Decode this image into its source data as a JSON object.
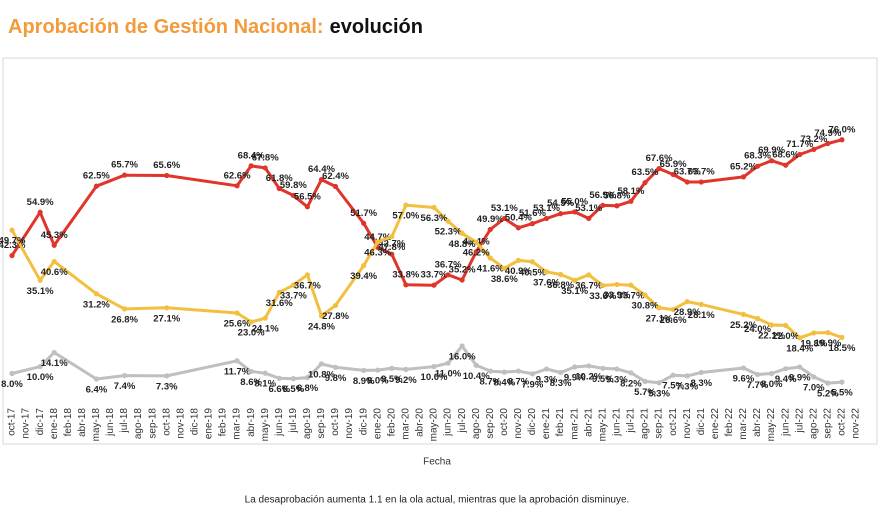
{
  "chart_data": {
    "type": "line",
    "title": "Aprobación de Gestión Nacional:",
    "title_emphasis": "evolución",
    "x_label": "Fecha",
    "note": "La desaprobación aumenta 1.1 en la ola actual, mientras que la aprobación disminuye.",
    "categories": [
      "oct-17",
      "nov-17",
      "dic-17",
      "ene-18",
      "feb-18",
      "abr-18",
      "may-18",
      "jun-18",
      "jul-18",
      "ago-18",
      "sep-18",
      "oct-18",
      "nov-18",
      "dic-18",
      "ene-19",
      "feb-19",
      "mar-19",
      "abr-19",
      "may-19",
      "jun-19",
      "jul-19",
      "ago-19",
      "sep-19",
      "oct-19",
      "nov-19",
      "dic-19",
      "ene-20",
      "feb-20",
      "mar-20",
      "abr-20",
      "may-20",
      "jun-20",
      "jul-20",
      "ago-20",
      "sep-20",
      "oct-20",
      "nov-20",
      "dic-20",
      "ene-21",
      "feb-21",
      "mar-21",
      "abr-21",
      "may-21",
      "jun-21",
      "jul-21",
      "ago-21",
      "sep-21",
      "oct-21",
      "nov-21",
      "dic-21",
      "ene-22",
      "feb-22",
      "mar-22",
      "abr-22",
      "may-22",
      "jun-22",
      "jul-22",
      "ago-22",
      "sep-22",
      "oct-22",
      "nov-22"
    ],
    "x": [
      "oct-17",
      "dic-17",
      "ene-18",
      "may-18",
      "jul-18",
      "oct-18",
      "mar-19",
      "abr-19",
      "may-19",
      "jun-19",
      "jul-19",
      "ago-19",
      "sep-19",
      "oct-19",
      "dic-19",
      "ene-20",
      "feb-20",
      "mar-20",
      "may-20",
      "jun-20",
      "jul-20",
      "ago-20",
      "sep-20",
      "oct-20",
      "nov-20",
      "dic-20",
      "ene-21",
      "feb-21",
      "mar-21",
      "abr-21",
      "may-21",
      "jun-21",
      "jul-21",
      "ago-21",
      "sep-21",
      "oct-21",
      "nov-21",
      "dic-21",
      "mar-22",
      "abr-22",
      "may-22",
      "jun-22",
      "jul-22",
      "ago-22",
      "sep-22",
      "oct-22"
    ],
    "ylim": [
      0,
      80
    ],
    "series": [
      {
        "color": "#e0352b",
        "label_side": "above",
        "values": [
          42.3,
          54.9,
          45.3,
          62.5,
          65.7,
          65.6,
          62.6,
          68.4,
          67.8,
          61.8,
          59.8,
          56.5,
          64.4,
          62.4,
          51.7,
          44.7,
          42.7,
          33.8,
          33.7,
          36.7,
          35.2,
          43.4,
          49.9,
          53.1,
          50.4,
          51.6,
          53.1,
          54.5,
          55.0,
          53.1,
          56.9,
          56.8,
          58.1,
          63.5,
          67.6,
          65.9,
          63.7,
          63.7,
          65.2,
          68.3,
          69.9,
          68.6,
          71.7,
          73.2,
          74.9,
          76.0
        ],
        "value_labels": [
          "42.3%",
          "54.9%",
          "45.3%",
          "62.5%",
          "65.7%",
          "65.6%",
          "62.6%",
          "68.4%",
          "67.8%",
          "61.8%",
          "59.8%",
          "56.5%",
          "64.4%",
          "62.4%",
          "51.7%",
          "44.7%",
          "42.7%",
          "33.8%",
          "33.7%",
          "36.7%",
          "35.2%",
          "43.4%",
          "49.9%",
          "53.1%",
          "50.4%",
          "51.6%",
          "53.1%",
          "54.5%",
          "55.0%",
          "53.1%",
          "56.9%",
          "56.8%",
          "58.1%",
          "63.5%",
          "67.6%",
          "65.9%",
          "63.7%",
          "63.7%",
          "65.2%",
          "68.3%",
          "69.9%",
          "68.6%",
          "71.7%",
          "73.2%",
          "74.9%",
          "76.0%"
        ]
      },
      {
        "color": "#f2bf3f",
        "label_side": "below",
        "values": [
          49.7,
          35.1,
          40.6,
          31.2,
          26.8,
          27.1,
          25.6,
          23.0,
          24.1,
          31.6,
          33.7,
          36.7,
          24.8,
          27.8,
          39.4,
          46.3,
          47.8,
          57.0,
          56.3,
          52.3,
          48.8,
          46.2,
          41.6,
          38.6,
          40.9,
          40.5,
          37.6,
          36.8,
          35.1,
          36.7,
          33.6,
          33.9,
          33.7,
          30.8,
          27.1,
          26.6,
          28.9,
          28.1,
          25.2,
          24.0,
          22.1,
          22.0,
          18.4,
          19.8,
          19.9,
          18.5
        ],
        "value_labels": [
          "49.7%",
          "35.1%",
          "40.6%",
          "31.2%",
          "26.8%",
          "27.1%",
          "25.6%",
          "23.0%",
          "24.1%",
          "31.6%",
          "33.7%",
          "36.7%",
          "24.8%",
          "27.8%",
          "39.4%",
          "46.3%",
          "47.8%",
          "57.0%",
          "56.3%",
          "52.3%",
          "48.8%",
          "46.2%",
          "41.6%",
          "38.6%",
          "40.9%",
          "40.5%",
          "37.6%",
          "36.8%",
          "35.1%",
          "36.7%",
          "33.6%",
          "33.9%",
          "33.7%",
          "30.8%",
          "27.1%",
          "26.6%",
          "28.9%",
          "28.1%",
          "25.2%",
          "24.0%",
          "22.1%",
          "22.0%",
          "18.4%",
          "19.8%",
          "19.9%",
          "18.5%"
        ]
      },
      {
        "color": "#bfbfbf",
        "label_side": "below",
        "values": [
          8.0,
          10.0,
          14.1,
          6.4,
          7.4,
          7.3,
          11.7,
          8.6,
          8.1,
          6.6,
          6.5,
          6.8,
          10.8,
          9.8,
          8.9,
          9.0,
          9.5,
          9.2,
          10.0,
          11.0,
          16.0,
          10.4,
          8.7,
          8.4,
          8.7,
          7.9,
          9.3,
          8.3,
          9.9,
          10.2,
          9.5,
          9.3,
          8.2,
          5.7,
          5.3,
          7.5,
          7.3,
          8.3,
          9.6,
          7.7,
          8.0,
          9.4,
          9.9,
          7.0,
          5.2,
          5.5
        ],
        "value_labels": [
          "8.0%",
          "10.0%",
          "14.1%",
          "6.4%",
          "7.4%",
          "7.3%",
          "11.7%",
          "8.6%",
          "8.1%",
          "6.6%",
          "6.5%",
          "6.8%",
          "10.8%",
          "9.8%",
          "8.9%",
          "9.0%",
          "9.5%",
          "9.2%",
          "10.0%",
          "11.0%",
          "16.0%",
          "10.4%",
          "8.7%",
          "8.4%",
          "8.7%",
          "7.9%",
          "9.3%",
          "8.3%",
          "9.9%",
          "10.2%",
          "9.5%",
          "9.3%",
          "8.2%",
          "5.7%",
          "5.3%",
          "7.5%",
          "7.3%",
          "8.3%",
          "9.6%",
          "7.7%",
          "8.0%",
          "9.4%",
          "9.9%",
          "7.0%",
          "5.2%",
          "5.5%"
        ]
      }
    ]
  }
}
